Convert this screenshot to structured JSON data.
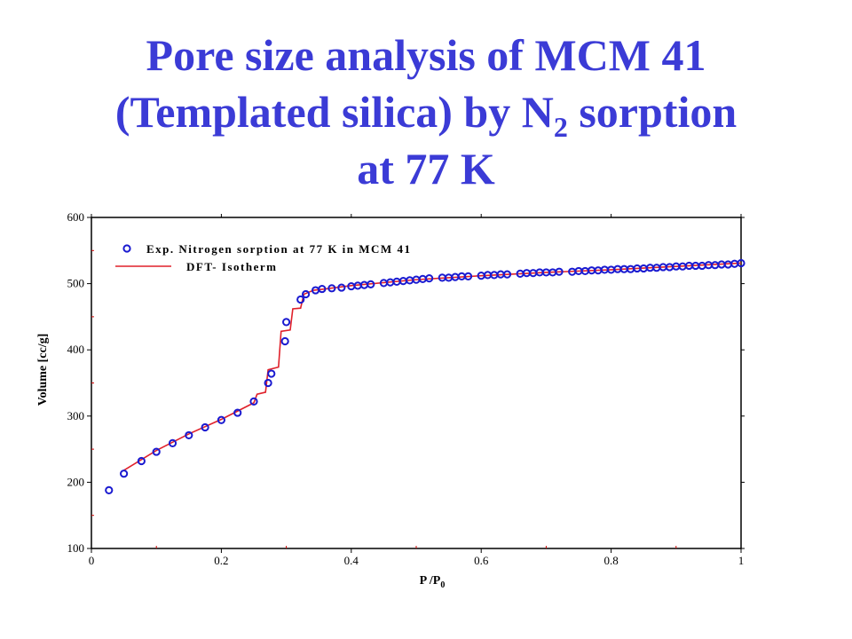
{
  "title": {
    "line1": "Pore size analysis of MCM 41",
    "line2_pre": "(Templated silica) by N",
    "line2_sub": "2",
    "line2_post": " sorption",
    "line3": "at 77 K"
  },
  "colors": {
    "title": "#3b3bd6",
    "experimental_markers": "#1a1ad0",
    "dft_line": "#e0202a",
    "axis": "#000000"
  },
  "chart_data": {
    "type": "line",
    "xlabel_main": "P /P",
    "xlabel_sub": "0",
    "ylabel": "Volume [cc/g]",
    "xlim": [
      0,
      1
    ],
    "ylim": [
      100,
      600
    ],
    "xticks": [
      "0",
      "0.2",
      "0.4",
      "0.6",
      "0.8",
      "1"
    ],
    "yticks": [
      "100",
      "200",
      "300",
      "400",
      "500",
      "600"
    ],
    "grid": false,
    "legend_position": "top-left",
    "series": [
      {
        "name": "Exp. Nitrogen sorption at 77 K in MCM 41",
        "style": "markers",
        "marker": "open-circle",
        "x": [
          0.027,
          0.05,
          0.077,
          0.1,
          0.125,
          0.15,
          0.175,
          0.2,
          0.225,
          0.25,
          0.272,
          0.277,
          0.298,
          0.3,
          0.322,
          0.33,
          0.345,
          0.355,
          0.37,
          0.385,
          0.4,
          0.41,
          0.42,
          0.43,
          0.45,
          0.46,
          0.47,
          0.48,
          0.49,
          0.5,
          0.51,
          0.52,
          0.54,
          0.55,
          0.56,
          0.57,
          0.58,
          0.6,
          0.61,
          0.62,
          0.63,
          0.64,
          0.66,
          0.67,
          0.68,
          0.69,
          0.7,
          0.71,
          0.72,
          0.74,
          0.75,
          0.76,
          0.77,
          0.78,
          0.79,
          0.8,
          0.81,
          0.82,
          0.83,
          0.84,
          0.85,
          0.86,
          0.87,
          0.88,
          0.89,
          0.9,
          0.91,
          0.92,
          0.93,
          0.94,
          0.95,
          0.96,
          0.97,
          0.98,
          0.99,
          1.0
        ],
        "y": [
          188,
          213,
          232,
          246,
          259,
          271,
          283,
          294,
          305,
          322,
          350,
          364,
          413,
          442,
          476,
          484,
          490,
          492,
          493,
          494,
          496,
          497,
          498,
          499,
          501,
          502,
          503,
          504,
          505,
          506,
          507,
          508,
          509,
          509,
          510,
          511,
          511,
          512,
          513,
          513,
          514,
          514,
          515,
          516,
          516,
          517,
          517,
          517,
          518,
          518,
          519,
          519,
          520,
          520,
          521,
          521,
          522,
          522,
          522,
          523,
          523,
          524,
          524,
          525,
          525,
          526,
          526,
          527,
          527,
          527,
          528,
          528,
          529,
          529,
          530,
          531
        ]
      },
      {
        "name": "DFT- Isotherm",
        "style": "line",
        "x": [
          0.05,
          0.1,
          0.15,
          0.2,
          0.25,
          0.255,
          0.268,
          0.272,
          0.288,
          0.292,
          0.306,
          0.31,
          0.322,
          0.327,
          0.342,
          0.36,
          0.4,
          0.5,
          0.6,
          0.7,
          0.8,
          0.9,
          1.0
        ],
        "y": [
          218,
          248,
          273,
          295,
          320,
          333,
          336,
          370,
          374,
          428,
          430,
          462,
          463,
          484,
          490,
          492,
          497,
          506,
          512,
          517,
          521,
          526,
          531
        ]
      }
    ]
  }
}
